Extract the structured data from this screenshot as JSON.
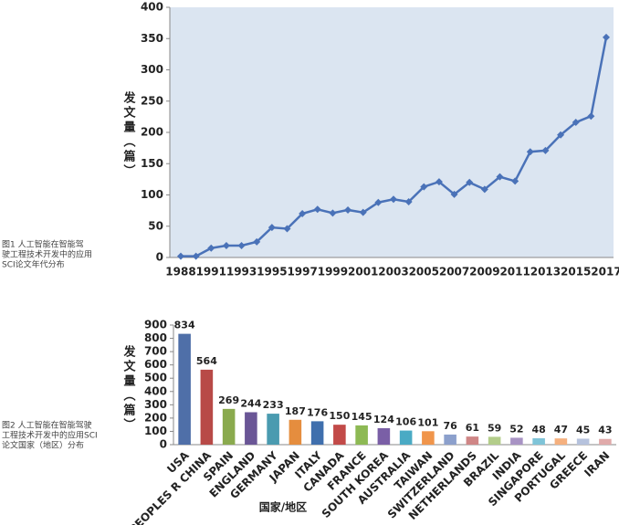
{
  "chart_data": [
    {
      "type": "line",
      "caption": [
        "图1 人工智能在智能驾",
        "驶工程技术开发中的应用",
        "SCI论文年代分布"
      ],
      "y_label": "发文量（篇）",
      "categories": [
        "1988",
        null,
        "1991",
        null,
        "1993",
        null,
        "1995",
        null,
        "1997",
        null,
        "1999",
        null,
        "2001",
        null,
        "2003",
        null,
        "2005",
        null,
        "2007",
        null,
        "2009",
        null,
        "2011",
        null,
        "2013",
        null,
        "2015",
        null,
        "2017"
      ],
      "values": [
        2,
        2,
        15,
        19,
        19,
        25,
        48,
        46,
        70,
        77,
        71,
        76,
        72,
        88,
        93,
        89,
        113,
        121,
        101,
        120,
        109,
        129,
        122,
        169,
        171,
        196,
        216,
        226,
        352
      ],
      "color": "#4a72b8",
      "ylim": [
        0,
        400
      ],
      "yticks": [
        0,
        50,
        100,
        150,
        200,
        250,
        300,
        350,
        400
      ],
      "background": "#dbe5f1"
    },
    {
      "type": "bar",
      "caption": [
        "图2 人工智能在智能驾驶",
        "工程技术开发中的应用SCI",
        "论文国家（地区）分布"
      ],
      "y_label": "发文量（篇）",
      "x_label": "国家/地区",
      "categories": [
        "USA",
        "PEOPLES R CHINA",
        "SPAIN",
        "ENGLAND",
        "GERMANY",
        "JAPAN",
        "ITALY",
        "CANADA",
        "FRANCE",
        "SOUTH KOREA",
        "AUSTRALIA",
        "TAIWAN",
        "SWITZERLAND",
        "NETHERLANDS",
        "BRAZIL",
        "INDIA",
        "SINGAPORE",
        "PORTUGAL",
        "GREECE",
        "IRAN"
      ],
      "values": [
        834,
        564,
        269,
        244,
        233,
        187,
        176,
        150,
        145,
        124,
        106,
        101,
        76,
        61,
        59,
        52,
        48,
        47,
        45,
        43
      ],
      "colors": [
        "#4f6fa8",
        "#b84a47",
        "#8aaa4e",
        "#6a5696",
        "#4a9bb0",
        "#e58d3e",
        "#3f6fad",
        "#c24a48",
        "#8db954",
        "#7a5fa6",
        "#4aaac4",
        "#f0954b",
        "#8ca0cc",
        "#cf8686",
        "#b3cd8a",
        "#a893c4",
        "#7fc4d8",
        "#f5b07e",
        "#b6c2dd",
        "#e0aaaa"
      ],
      "ylim": [
        0,
        900
      ],
      "yticks": [
        0,
        100,
        200,
        300,
        400,
        500,
        600,
        700,
        800,
        900
      ]
    }
  ]
}
